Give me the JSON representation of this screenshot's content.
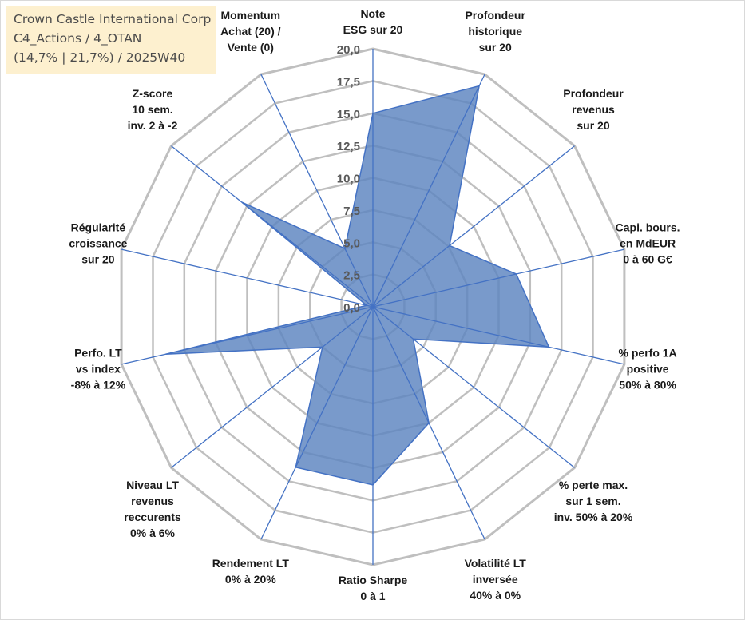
{
  "info": {
    "line1": "Crown Castle International Corp",
    "line2": "C4_Actions / 4_OTAN",
    "line3": "(14,7% | 21,7%) / 2025W40"
  },
  "chart_data": {
    "type": "radar",
    "title": "",
    "range": [
      0,
      20
    ],
    "tick_labels": [
      "0,0",
      "2,5",
      "5,0",
      "7,5",
      "10,0",
      "12,5",
      "15,0",
      "17,5",
      "20,0"
    ],
    "grid": true,
    "axes": [
      [
        "Note",
        "ESG sur 20"
      ],
      [
        "Profondeur",
        "historique",
        "sur 20"
      ],
      [
        "Profondeur",
        "revenus",
        "sur 20"
      ],
      [
        "Capi. bours.",
        "en MdEUR",
        "0 à 60 G€"
      ],
      [
        "% perfo 1A",
        "positive",
        "50% à 80%"
      ],
      [
        "% perte max.",
        "sur 1 sem.",
        "inv. 50% à 20%"
      ],
      [
        "Volatilité LT",
        "inversée",
        "40% à 0%"
      ],
      [
        "Ratio Sharpe",
        "0 à 1"
      ],
      [
        "Rendement LT",
        "0% à 20%"
      ],
      [
        "Niveau LT",
        "revenus",
        "reccurents",
        "0% à 6%"
      ],
      [
        "Perfo. LT",
        "vs index",
        "-8% à 12%"
      ],
      [
        "Régularité",
        "croissance",
        "sur 20"
      ],
      [
        "Z-score",
        "10 sem.",
        "inv. 2 à -2"
      ],
      [
        "Momentum",
        "Achat (20) /",
        "Vente (0)"
      ]
    ],
    "series": [
      {
        "name": "Crown Castle International Corp",
        "color": "#5b84bf",
        "values": [
          15.0,
          19.0,
          7.6,
          11.4,
          14.0,
          4.0,
          10.0,
          13.8,
          13.8,
          5.0,
          16.5,
          0.5,
          13.0,
          5.0
        ]
      }
    ]
  },
  "colors": {
    "grid": "#bfbfbf",
    "axis": "#4472c4",
    "fill": "#5b84bf",
    "stroke": "#4472c4",
    "info_bg": "#fdeec9"
  }
}
